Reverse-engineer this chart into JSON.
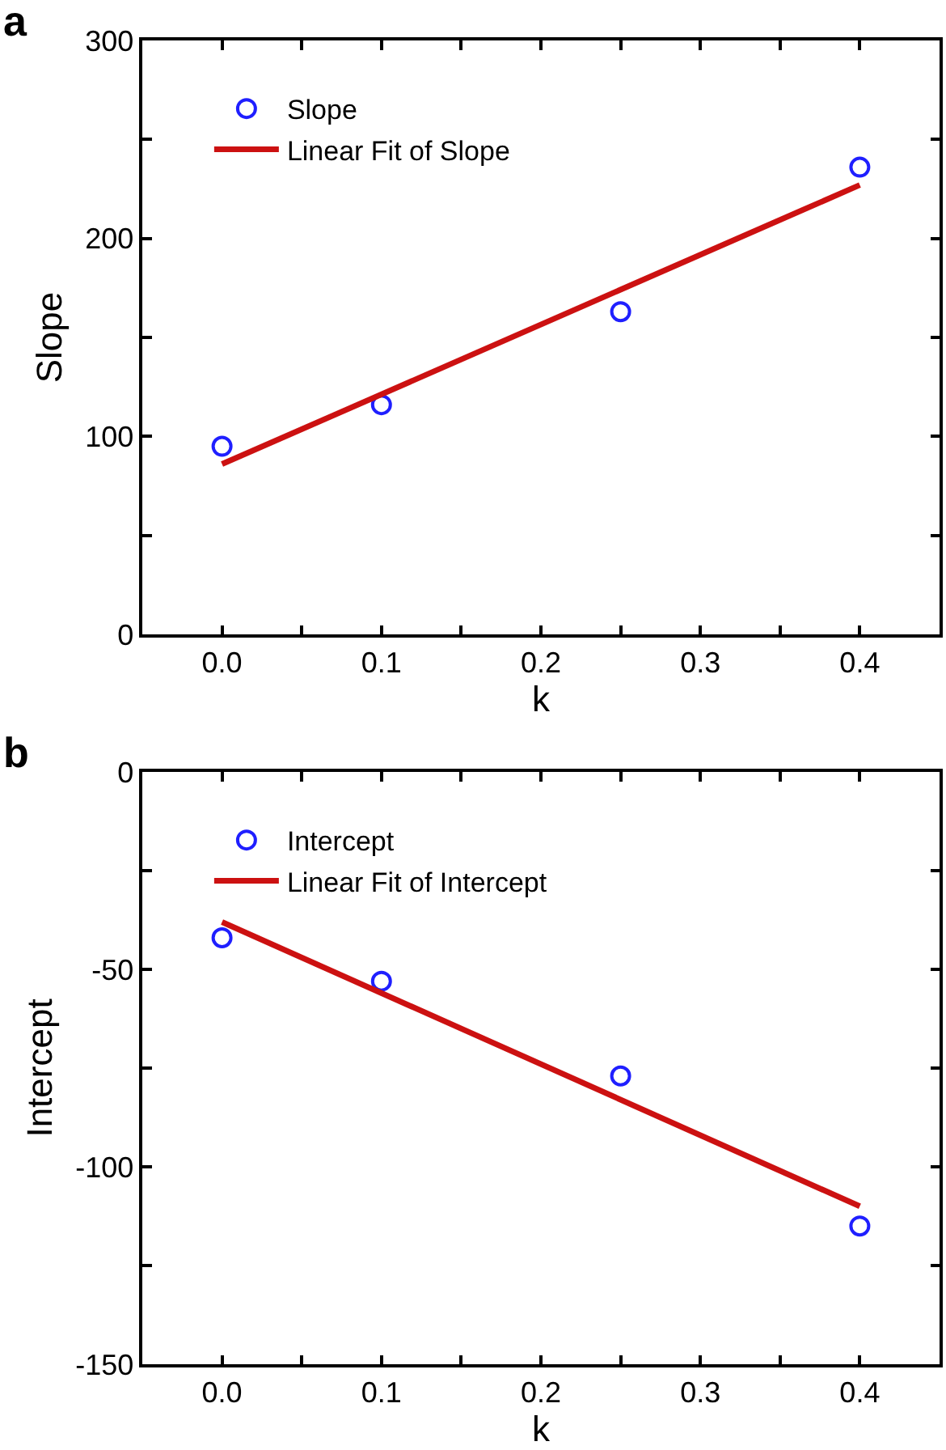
{
  "chart_data": [
    {
      "type": "scatter",
      "xlabel": "k",
      "ylabel": "Slope",
      "annotations": [
        "a"
      ],
      "legend": "top left",
      "xlim": [
        -0.05,
        0.45
      ],
      "ylim": [
        0,
        300
      ],
      "xticks": [
        {
          "value": 0,
          "label": "0.0"
        },
        {
          "value": 0.05,
          "label": null
        },
        {
          "value": 0.1,
          "label": "0.1"
        },
        {
          "value": 0.15,
          "label": null
        },
        {
          "value": 0.2,
          "label": "0.2"
        },
        {
          "value": 0.25,
          "label": null
        },
        {
          "value": 0.3,
          "label": "0.3"
        },
        {
          "value": 0.35,
          "label": null
        },
        {
          "value": 0.4,
          "label": "0.4"
        }
      ],
      "yticks": [
        0,
        {
          "value": 50,
          "label": null
        },
        100,
        {
          "value": 150,
          "label": null
        },
        200,
        {
          "value": 250,
          "label": null
        },
        300
      ],
      "series": [
        {
          "name": "Slope",
          "marker": "circle",
          "color": "#1f1fff",
          "x": [
            0,
            0.1,
            0.25,
            0.4
          ],
          "values": [
            95,
            116,
            163,
            236
          ]
        },
        {
          "name": "Linear Fit of Slope",
          "type": "line",
          "line_style": "solid",
          "color": "#cc1111",
          "x": [
            0,
            0.4
          ],
          "values": [
            86,
            227
          ]
        }
      ]
    },
    {
      "type": "scatter",
      "xlabel": "k",
      "ylabel": "Intercept",
      "annotations": [
        "b"
      ],
      "legend": "top left",
      "xlim": [
        -0.05,
        0.45
      ],
      "ylim": [
        -150,
        0
      ],
      "xticks": [
        {
          "value": 0,
          "label": "0.0"
        },
        {
          "value": 0.05,
          "label": null
        },
        {
          "value": 0.1,
          "label": "0.1"
        },
        {
          "value": 0.15,
          "label": null
        },
        {
          "value": 0.2,
          "label": "0.2"
        },
        {
          "value": 0.25,
          "label": null
        },
        {
          "value": 0.3,
          "label": "0.3"
        },
        {
          "value": 0.35,
          "label": null
        },
        {
          "value": 0.4,
          "label": "0.4"
        }
      ],
      "yticks": [
        -150,
        {
          "value": -125,
          "label": null
        },
        -100,
        {
          "value": -75,
          "label": null
        },
        -50,
        {
          "value": -25,
          "label": null
        },
        0
      ],
      "series": [
        {
          "name": "Intercept",
          "marker": "circle",
          "color": "#1f1fff",
          "x": [
            0,
            0.1,
            0.25,
            0.4
          ],
          "values": [
            -42,
            -53,
            -77,
            -115
          ]
        },
        {
          "name": "Linear Fit of Intercept",
          "type": "line",
          "line_style": "solid",
          "color": "#cc1111",
          "x": [
            0,
            0.4
          ],
          "values": [
            -38,
            -110
          ]
        }
      ]
    }
  ]
}
